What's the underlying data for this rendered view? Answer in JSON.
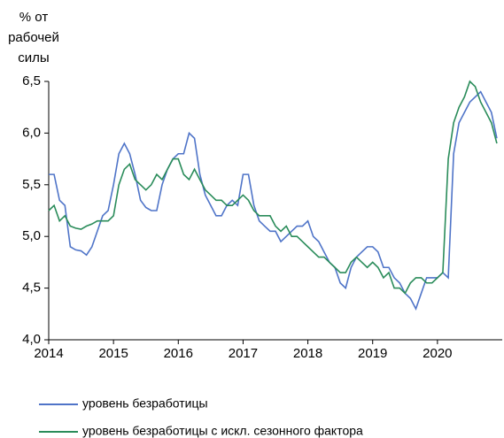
{
  "chart_data": {
    "type": "line",
    "y_label": [
      "% от",
      "рабочей",
      "силы"
    ],
    "x": [
      2014,
      2014.083,
      2014.167,
      2014.25,
      2014.333,
      2014.417,
      2014.5,
      2014.583,
      2014.667,
      2014.75,
      2014.833,
      2014.917,
      2015,
      2015.083,
      2015.167,
      2015.25,
      2015.333,
      2015.417,
      2015.5,
      2015.583,
      2015.667,
      2015.75,
      2015.833,
      2015.917,
      2016,
      2016.083,
      2016.167,
      2016.25,
      2016.333,
      2016.417,
      2016.5,
      2016.583,
      2016.667,
      2016.75,
      2016.833,
      2016.917,
      2017,
      2017.083,
      2017.167,
      2017.25,
      2017.333,
      2017.417,
      2017.5,
      2017.583,
      2017.667,
      2017.75,
      2017.833,
      2017.917,
      2018,
      2018.083,
      2018.167,
      2018.25,
      2018.333,
      2018.417,
      2018.5,
      2018.583,
      2018.667,
      2018.75,
      2018.833,
      2018.917,
      2019,
      2019.083,
      2019.167,
      2019.25,
      2019.333,
      2019.417,
      2019.5,
      2019.583,
      2019.667,
      2019.75,
      2019.833,
      2019.917,
      2020,
      2020.083,
      2020.167,
      2020.25,
      2020.333,
      2020.417,
      2020.5,
      2020.583,
      2020.667,
      2020.75,
      2020.833,
      2020.917
    ],
    "series": [
      {
        "name": "уровень безработицы",
        "color": "#4f74c8",
        "values": [
          5.6,
          5.6,
          5.35,
          5.3,
          4.9,
          4.87,
          4.86,
          4.82,
          4.9,
          5.05,
          5.2,
          5.25,
          5.5,
          5.8,
          5.9,
          5.8,
          5.6,
          5.35,
          5.28,
          5.25,
          5.25,
          5.5,
          5.65,
          5.75,
          5.8,
          5.8,
          6.0,
          5.95,
          5.6,
          5.4,
          5.3,
          5.2,
          5.2,
          5.3,
          5.35,
          5.3,
          5.6,
          5.6,
          5.3,
          5.15,
          5.1,
          5.05,
          5.05,
          4.95,
          5.0,
          5.05,
          5.1,
          5.1,
          5.15,
          5.0,
          4.95,
          4.85,
          4.75,
          4.7,
          4.55,
          4.5,
          4.7,
          4.8,
          4.85,
          4.9,
          4.9,
          4.85,
          4.7,
          4.7,
          4.6,
          4.55,
          4.45,
          4.4,
          4.3,
          4.45,
          4.6,
          4.6,
          4.6,
          4.65,
          4.6,
          5.8,
          6.1,
          6.2,
          6.3,
          6.35,
          6.4,
          6.3,
          6.2,
          5.95
        ]
      },
      {
        "name": "уровень безработицы с искл. сезонного фактора",
        "color": "#2a8c5a",
        "values": [
          5.25,
          5.3,
          5.15,
          5.2,
          5.1,
          5.08,
          5.07,
          5.1,
          5.12,
          5.15,
          5.15,
          5.15,
          5.2,
          5.5,
          5.65,
          5.7,
          5.55,
          5.5,
          5.45,
          5.5,
          5.6,
          5.55,
          5.65,
          5.75,
          5.75,
          5.6,
          5.55,
          5.65,
          5.55,
          5.45,
          5.4,
          5.35,
          5.35,
          5.3,
          5.3,
          5.35,
          5.4,
          5.35,
          5.25,
          5.2,
          5.2,
          5.2,
          5.1,
          5.05,
          5.1,
          5.0,
          5.0,
          4.95,
          4.9,
          4.85,
          4.8,
          4.8,
          4.75,
          4.7,
          4.65,
          4.65,
          4.75,
          4.8,
          4.75,
          4.7,
          4.75,
          4.7,
          4.6,
          4.65,
          4.5,
          4.5,
          4.45,
          4.55,
          4.6,
          4.6,
          4.55,
          4.55,
          4.6,
          4.65,
          5.75,
          6.1,
          6.25,
          6.35,
          6.5,
          6.45,
          6.3,
          6.2,
          6.1,
          5.9
        ]
      }
    ],
    "xlim": [
      2014,
      2021
    ],
    "xticks": [
      2014,
      2015,
      2016,
      2017,
      2018,
      2019,
      2020
    ],
    "ylim": [
      4,
      6.5
    ],
    "yticks": [
      {
        "value": 4,
        "label": "4,0"
      },
      {
        "value": 4.5,
        "label": "4,5"
      },
      {
        "value": 5,
        "label": "5,0"
      },
      {
        "value": 5.5,
        "label": "5,5"
      },
      {
        "value": 6,
        "label": "6,0"
      },
      {
        "value": 6.5,
        "label": "6,5"
      }
    ],
    "grid": false,
    "legend": "bottom"
  }
}
